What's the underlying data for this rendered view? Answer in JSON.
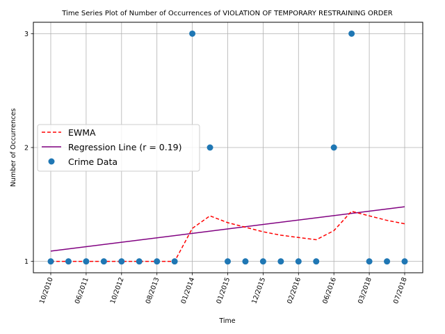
{
  "chart_data": {
    "type": "scatter",
    "title": "Time Series Plot of Number of Occurrences of VIOLATION OF TEMPORARY RESTRAINING ORDER",
    "xlabel": "Time",
    "ylabel": "Number of Occurrences",
    "x_tick_labels": [
      "10/2010",
      "06/2011",
      "10/2012",
      "08/2013",
      "01/2014",
      "01/2015",
      "12/2015",
      "02/2016",
      "06/2016",
      "03/2018",
      "07/2018"
    ],
    "y_ticks": [
      1,
      2,
      3
    ],
    "ylim": [
      0.9,
      3.1
    ],
    "grid": true,
    "legend_position": "center-left",
    "series": [
      {
        "name": "Crime Data",
        "kind": "scatter",
        "color": "#1f77b4",
        "values": [
          1,
          1,
          1,
          1,
          1,
          1,
          1,
          1,
          3,
          2,
          1,
          1,
          1,
          1,
          1,
          1,
          2,
          3,
          1,
          1,
          1
        ]
      },
      {
        "name": "EWMA",
        "kind": "line-dashed",
        "color": "#ff0000",
        "values": [
          1,
          1,
          1,
          1,
          1,
          1,
          1,
          1,
          1.29,
          1.4,
          1.34,
          1.3,
          1.26,
          1.23,
          1.21,
          1.19,
          1.27,
          1.44,
          1.4,
          1.36,
          1.33
        ]
      },
      {
        "name": "Regression Line (r = 0.19)",
        "kind": "line",
        "color": "#800080",
        "values": [
          1.09,
          1.48
        ]
      }
    ]
  }
}
